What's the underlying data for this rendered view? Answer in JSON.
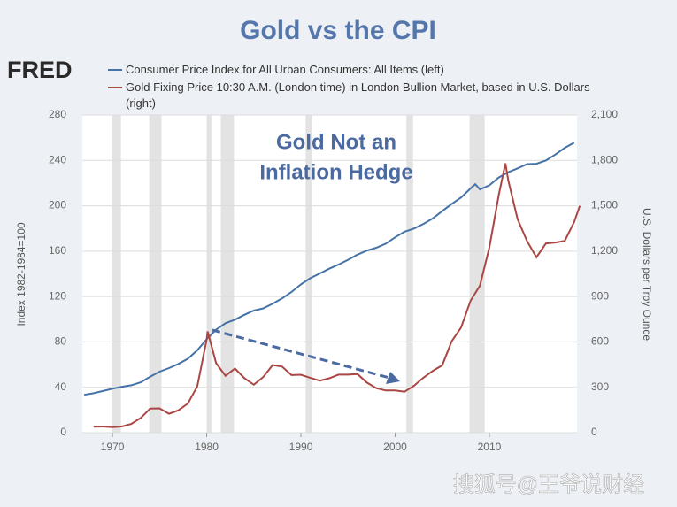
{
  "chart_data": {
    "type": "line",
    "title": "Gold vs the CPI",
    "logo": "FRED",
    "annotation": [
      "Gold Not an",
      "Inflation Hedge"
    ],
    "watermark": "搜狐号@王爷说财经",
    "ylabel": "Index 1982-1984=100",
    "y2label": "U.S. Dollars per Troy Ounce",
    "xlim": [
      1966.8,
      2019.3
    ],
    "xticks": [
      1970,
      1980,
      1990,
      2000,
      2010
    ],
    "ylim": [
      0,
      280
    ],
    "yticks": [
      0,
      40,
      80,
      120,
      160,
      200,
      240,
      280
    ],
    "y2lim": [
      0,
      2100
    ],
    "y2ticks": [
      0,
      300,
      600,
      900,
      {
        "value": 1200,
        "label": "1,200"
      },
      {
        "value": 1500,
        "label": "1,500"
      },
      {
        "value": 1800,
        "label": "1,800"
      },
      {
        "value": 2100,
        "label": "2,100"
      }
    ],
    "grid": true,
    "recessions": [
      [
        1969.9,
        1970.9
      ],
      [
        1973.9,
        1975.2
      ],
      [
        1980.0,
        1980.5
      ],
      [
        1981.5,
        1982.9
      ],
      [
        1990.5,
        1991.2
      ],
      [
        2001.2,
        2001.9
      ],
      [
        2007.9,
        2009.5
      ]
    ],
    "series": [
      {
        "name": "Consumer Price Index for All Urban Consumers: All Items (left)",
        "color": "#4572a7",
        "axis": "y",
        "x": [
          1967,
          1968,
          1969,
          1970,
          1971,
          1972,
          1973,
          1974,
          1975,
          1976,
          1977,
          1978,
          1979,
          1980,
          1981,
          1982,
          1983,
          1984,
          1985,
          1986,
          1987,
          1988,
          1989,
          1990,
          1991,
          1992,
          1993,
          1994,
          1995,
          1996,
          1997,
          1998,
          1999,
          2000,
          2001,
          2002,
          2003,
          2004,
          2005,
          2006,
          2007,
          2008,
          2008.5,
          2009,
          2010,
          2011,
          2012,
          2013,
          2014,
          2015,
          2016,
          2017,
          2018,
          2019
        ],
        "values": [
          33.4,
          34.8,
          36.7,
          38.8,
          40.5,
          41.8,
          44.4,
          49.3,
          53.8,
          56.9,
          60.6,
          65.2,
          72.6,
          82.4,
          90.9,
          96.5,
          99.6,
          103.9,
          107.6,
          109.6,
          113.6,
          118.3,
          124.0,
          130.7,
          136.2,
          140.3,
          144.5,
          148.2,
          152.4,
          156.9,
          160.5,
          163.0,
          166.6,
          172.2,
          177.1,
          179.9,
          184.0,
          188.9,
          195.3,
          201.6,
          207.3,
          215.3,
          219.0,
          214.5,
          218.1,
          224.9,
          229.6,
          233.0,
          236.7,
          237.0,
          240.0,
          245.1,
          251.1,
          255.7
        ]
      },
      {
        "name": "Gold Fixing Price 10:30 A.M. (London time) in London Bullion Market, based in U.S. Dollars (right)",
        "color": "#aa4643",
        "axis": "y2",
        "x": [
          1968,
          1969,
          1970,
          1971,
          1972,
          1973,
          1974,
          1975,
          1976,
          1977,
          1978,
          1979,
          1980,
          1980.1,
          1981,
          1982,
          1983,
          1984,
          1985,
          1986,
          1987,
          1988,
          1989,
          1990,
          1991,
          1992,
          1993,
          1994,
          1995,
          1996,
          1997,
          1998,
          1999,
          2000,
          2001,
          2002,
          2003,
          2004,
          2005,
          2006,
          2007,
          2008,
          2009,
          2010,
          2011,
          2011.7,
          2012,
          2013,
          2014,
          2015,
          2016,
          2017,
          2018,
          2019,
          2019.6
        ],
        "values": [
          39,
          41,
          36,
          41,
          58,
          97,
          159,
          161,
          125,
          148,
          193,
          306,
          615,
          670,
          460,
          376,
          424,
          361,
          317,
          368,
          447,
          437,
          381,
          383,
          362,
          344,
          360,
          384,
          384,
          388,
          331,
          294,
          279,
          279,
          271,
          310,
          363,
          409,
          445,
          604,
          695,
          872,
          972,
          1225,
          1572,
          1780,
          1669,
          1411,
          1266,
          1160,
          1251,
          1257,
          1268,
          1393,
          1500
        ]
      }
    ]
  }
}
